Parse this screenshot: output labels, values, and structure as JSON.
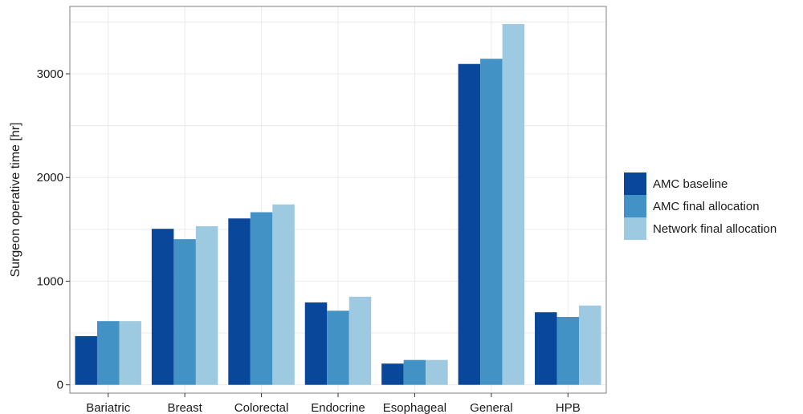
{
  "chart_data": {
    "type": "bar",
    "title": "",
    "xlabel": "",
    "ylabel": "Surgeon operative time [hr]",
    "categories": [
      "Bariatric",
      "Breast",
      "Colorectal",
      "Endocrine",
      "Esophageal",
      "General",
      "HPB"
    ],
    "series": [
      {
        "name": "AMC baseline",
        "color": "#08479a",
        "values": [
          470,
          1505,
          1605,
          795,
          205,
          3095,
          700
        ]
      },
      {
        "name": "AMC final allocation",
        "color": "#4292c6",
        "values": [
          615,
          1405,
          1665,
          715,
          240,
          3145,
          655
        ]
      },
      {
        "name": "Network final allocation",
        "color": "#9ecae1",
        "values": [
          615,
          1530,
          1740,
          850,
          240,
          3480,
          765
        ]
      }
    ],
    "yticks": [
      0,
      1000,
      2000,
      3000
    ],
    "ylim": [
      -80,
      3650
    ],
    "grid": true,
    "legend_position": "right"
  }
}
